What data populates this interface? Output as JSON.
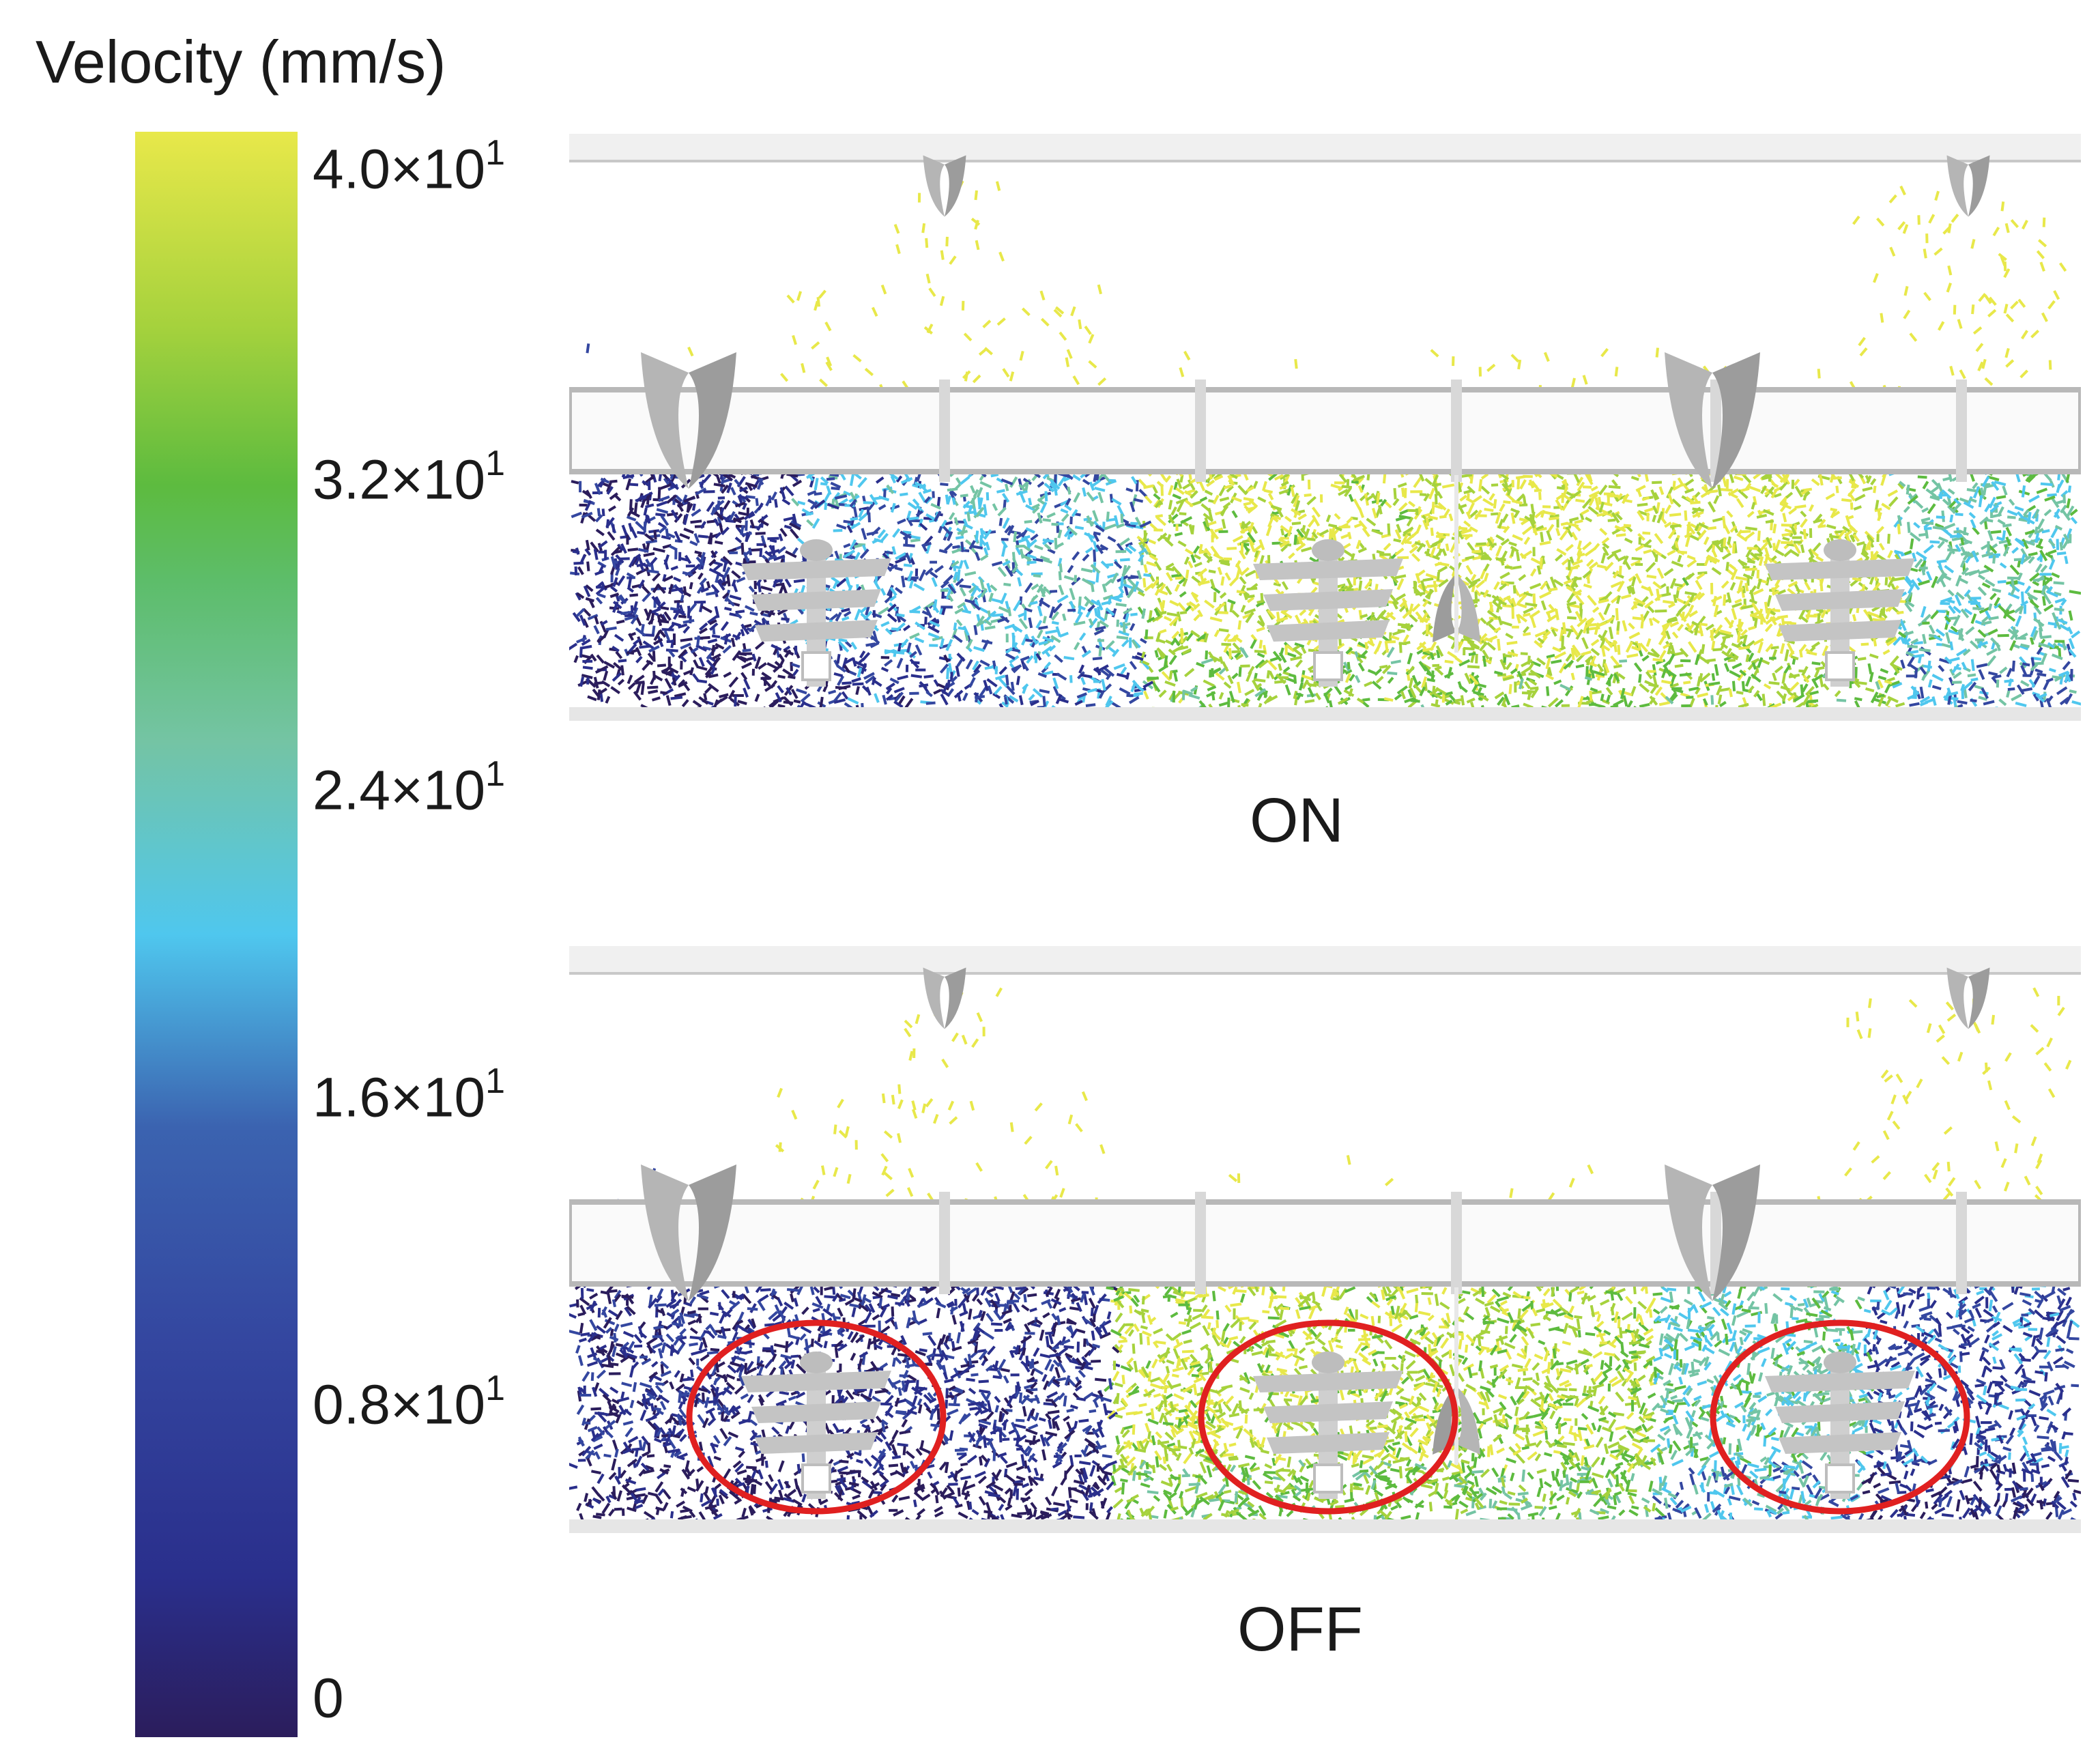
{
  "colorbar": {
    "title": "Velocity (mm/s)",
    "ticks": [
      {
        "label": "4.0×10",
        "exp": "1"
      },
      {
        "label": "3.2×10",
        "exp": "1"
      },
      {
        "label": "2.4×10",
        "exp": "1"
      },
      {
        "label": "1.6×10",
        "exp": "1"
      },
      {
        "label": "0.8×10",
        "exp": "1"
      },
      {
        "label": "0",
        "exp": ""
      }
    ],
    "colors": [
      "#2b1d5c",
      "#2a2f8c",
      "#3447a0",
      "#4fc7ee",
      "#74c4a4",
      "#5dbb3f",
      "#a6d23d",
      "#e8e84a"
    ],
    "range": [
      0,
      40
    ]
  },
  "panels": [
    {
      "label": "ON",
      "highlight_circles": 0
    },
    {
      "label": "OFF",
      "highlight_circles": 3
    }
  ],
  "accent": {
    "highlight": "#e02020",
    "device": "#bdbdbd",
    "pipe": "#d0d0d0"
  }
}
